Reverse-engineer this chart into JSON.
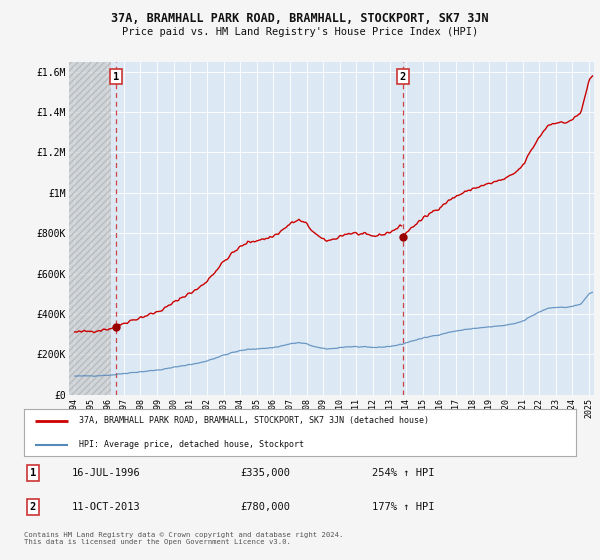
{
  "title": "37A, BRAMHALL PARK ROAD, BRAMHALL, STOCKPORT, SK7 3JN",
  "subtitle": "Price paid vs. HM Land Registry's House Price Index (HPI)",
  "bg_color": "#f5f5f5",
  "plot_bg_color": "#dce9f5",
  "grid_color": "#ffffff",
  "sale1_date_yr": 1996.54,
  "sale1_price": 335000,
  "sale2_date_yr": 2013.79,
  "sale2_price": 780000,
  "ylim_max": 1650000,
  "ylim_min": 0,
  "xlim_min": 1993.7,
  "xlim_max": 2025.3,
  "ytick_labels": [
    "£0",
    "£200K",
    "£400K",
    "£600K",
    "£800K",
    "£1M",
    "£1.2M",
    "£1.4M",
    "£1.6M"
  ],
  "ytick_values": [
    0,
    200000,
    400000,
    600000,
    800000,
    1000000,
    1200000,
    1400000,
    1600000
  ],
  "xtick_values": [
    1994,
    1995,
    1996,
    1997,
    1998,
    1999,
    2000,
    2001,
    2002,
    2003,
    2004,
    2005,
    2006,
    2007,
    2008,
    2009,
    2010,
    2011,
    2012,
    2013,
    2014,
    2015,
    2016,
    2017,
    2018,
    2019,
    2020,
    2021,
    2022,
    2023,
    2024,
    2025
  ],
  "legend_label1": "37A, BRAMHALL PARK ROAD, BRAMHALL, STOCKPORT, SK7 3JN (detached house)",
  "legend_label2": "HPI: Average price, detached house, Stockport",
  "sale1_label": "1",
  "sale2_label": "2",
  "table_row1": [
    "1",
    "16-JUL-1996",
    "£335,000",
    "254% ↑ HPI"
  ],
  "table_row2": [
    "2",
    "11-OCT-2013",
    "£780,000",
    "177% ↑ HPI"
  ],
  "footer": "Contains HM Land Registry data © Crown copyright and database right 2024.\nThis data is licensed under the Open Government Licence v3.0.",
  "line1_color": "#cc0000",
  "line2_color": "#5588bb",
  "marker_color": "#990000",
  "dashed_line_color": "#cc4444",
  "hatch_end_yr": 1996.2
}
